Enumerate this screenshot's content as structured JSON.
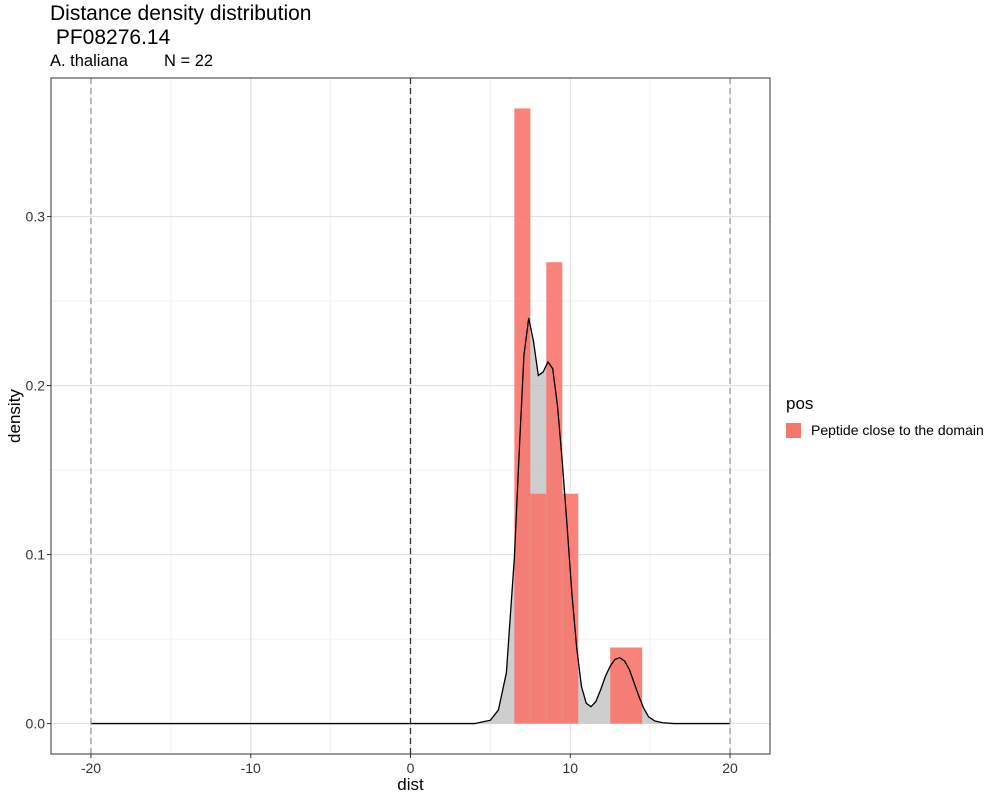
{
  "chart_data": {
    "type": "bar",
    "title_line1": "Distance density distribution",
    "title_line2": " PF08276.14",
    "subtitle_species": "A. thaliana",
    "subtitle_n": "N = 22",
    "xlabel": "dist",
    "ylabel": "density",
    "xlim": [
      -22.5,
      22.5
    ],
    "ylim": [
      -0.018,
      0.382
    ],
    "xticks": [
      -20,
      -10,
      0,
      10,
      20
    ],
    "xtick_labels": [
      "-20",
      "-10",
      "0",
      "10",
      "20"
    ],
    "yticks": [
      0.0,
      0.1,
      0.2,
      0.3
    ],
    "ytick_labels": [
      "0.0",
      "0.1",
      "0.2",
      "0.3"
    ],
    "grid": true,
    "vlines": [
      {
        "x": -20,
        "style": "dashed",
        "color": "#999999"
      },
      {
        "x": 0,
        "style": "dashed",
        "color": "#333333"
      },
      {
        "x": 20,
        "style": "dashed",
        "color": "#999999"
      }
    ],
    "histogram": {
      "name": "Peptide close to the domain",
      "color": "#F8766D",
      "bins": [
        {
          "x0": 6.5,
          "x1": 7.5,
          "density": 0.364
        },
        {
          "x0": 7.5,
          "x1": 8.5,
          "density": 0.136
        },
        {
          "x0": 8.5,
          "x1": 9.5,
          "density": 0.273
        },
        {
          "x0": 9.5,
          "x1": 10.5,
          "density": 0.136
        },
        {
          "x0": 12.5,
          "x1": 14.5,
          "density": 0.045
        }
      ]
    },
    "density_curve": {
      "fill": "#bebebe",
      "x": [
        -20,
        4,
        5,
        5.5,
        6,
        6.5,
        6.8,
        7.1,
        7.4,
        7.7,
        8.0,
        8.3,
        8.6,
        8.9,
        9.2,
        9.5,
        9.8,
        10.1,
        10.4,
        10.7,
        11.0,
        11.3,
        11.6,
        11.9,
        12.2,
        12.5,
        12.8,
        13.1,
        13.4,
        13.7,
        14.0,
        14.3,
        14.6,
        14.9,
        15.3,
        15.8,
        16.5,
        20
      ],
      "y": [
        0,
        0,
        0.002,
        0.008,
        0.03,
        0.098,
        0.16,
        0.218,
        0.24,
        0.226,
        0.206,
        0.208,
        0.214,
        0.21,
        0.188,
        0.155,
        0.117,
        0.077,
        0.045,
        0.022,
        0.012,
        0.01,
        0.013,
        0.02,
        0.028,
        0.034,
        0.038,
        0.039,
        0.037,
        0.032,
        0.024,
        0.016,
        0.009,
        0.004,
        0.0015,
        0.0005,
        0,
        0
      ]
    },
    "legend": {
      "title": "pos",
      "position": "right",
      "entries": [
        {
          "label": "Peptide close to the domain",
          "color": "#F8766D"
        }
      ]
    }
  }
}
